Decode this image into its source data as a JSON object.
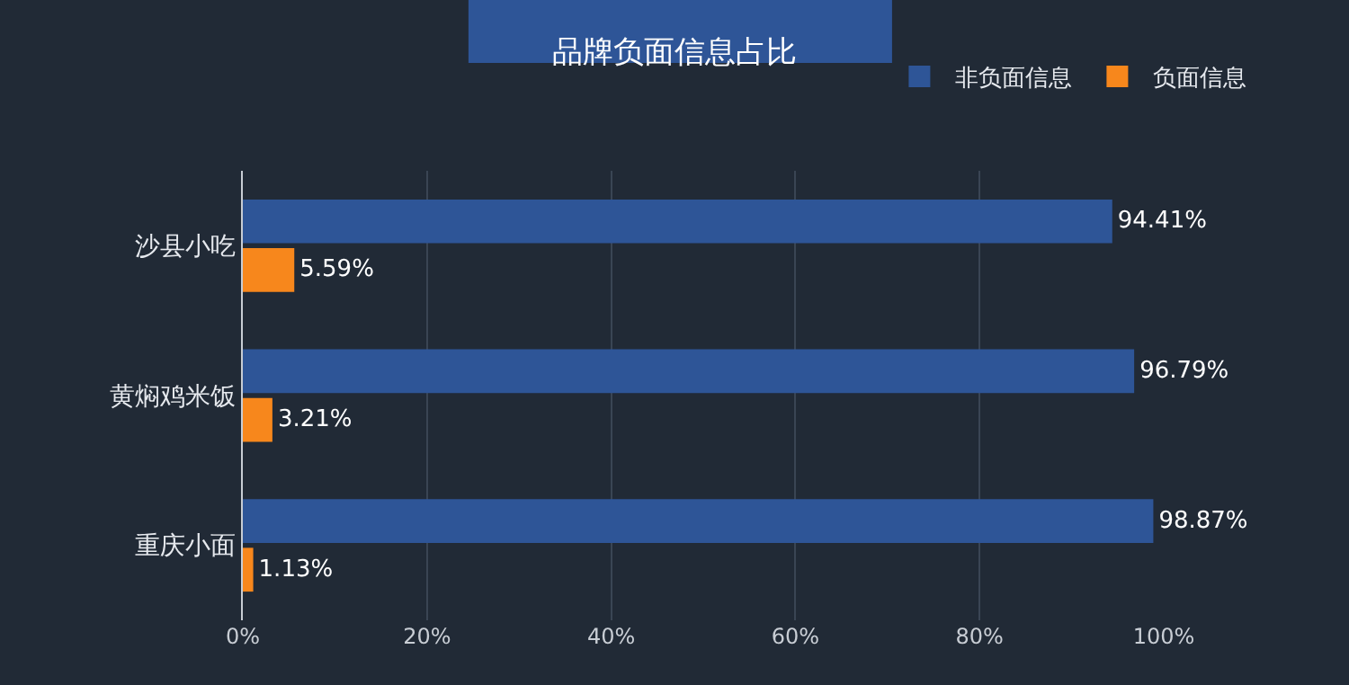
{
  "chart_data": {
    "type": "bar",
    "orientation": "horizontal",
    "title": "品牌负面信息占比",
    "categories": [
      "沙县小吃",
      "黄焖鸡米饭",
      "重庆小面"
    ],
    "series": [
      {
        "name": "非负面信息",
        "color": "#2e5597",
        "values": [
          94.41,
          96.79,
          98.87
        ],
        "value_labels": [
          "94.41%",
          "96.79%",
          "98.87%"
        ]
      },
      {
        "name": "负面信息",
        "color": "#f7871c",
        "values": [
          5.59,
          3.21,
          1.13
        ],
        "value_labels": [
          "5.59%",
          "3.21%",
          "1.13%"
        ]
      }
    ],
    "xlim": [
      0,
      100
    ],
    "xticks": [
      {
        "value": 0,
        "label": "0%"
      },
      {
        "value": 20,
        "label": "20%"
      },
      {
        "value": 40,
        "label": "40%"
      },
      {
        "value": 60,
        "label": "60%"
      },
      {
        "value": 80,
        "label": "80%"
      },
      {
        "value": 100,
        "label": "100%"
      }
    ],
    "grid": "x",
    "legend": "top right"
  }
}
